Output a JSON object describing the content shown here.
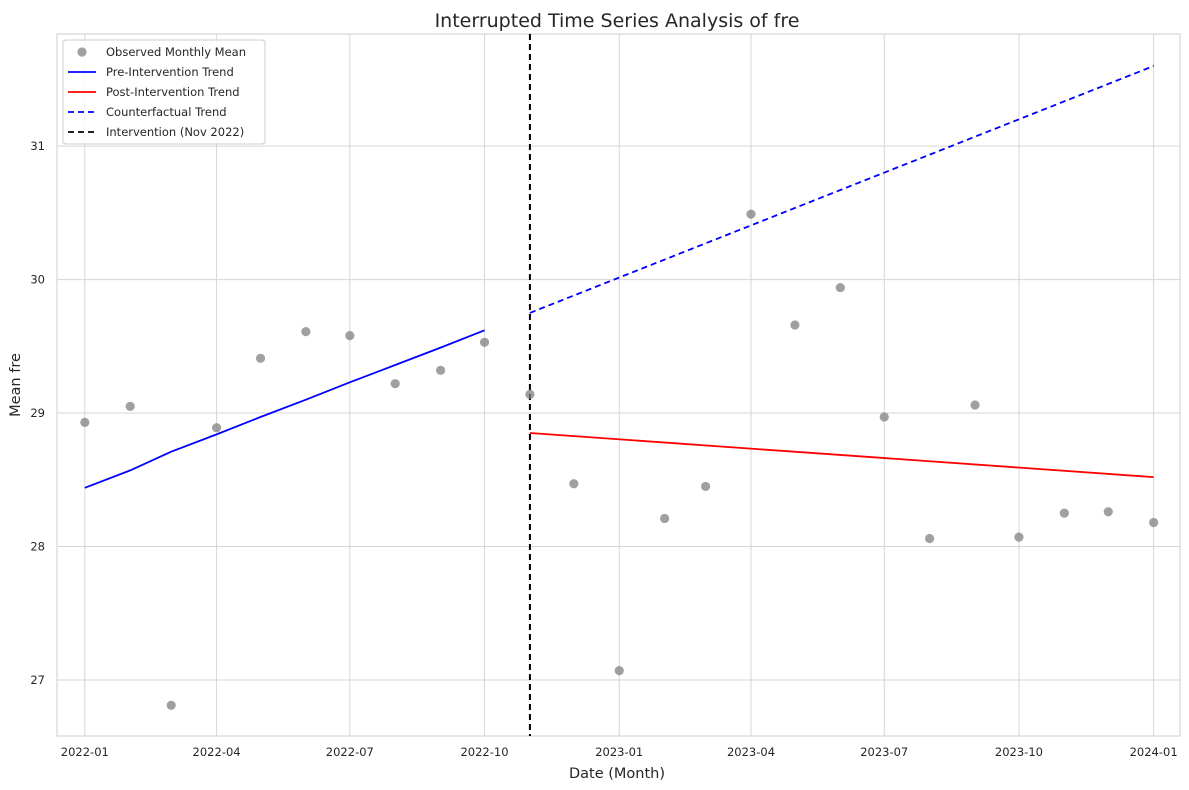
{
  "chart_data": {
    "type": "line",
    "title": "Interrupted Time Series Analysis of fre",
    "xlabel": "Date (Month)",
    "ylabel": "Mean fre",
    "x_range": [
      "2021-12-13",
      "2024-01-19"
    ],
    "ylim": [
      26.58,
      31.84
    ],
    "x_ticks": [
      {
        "date": "2022-01-01",
        "label": "2022-01"
      },
      {
        "date": "2022-04-01",
        "label": "2022-04"
      },
      {
        "date": "2022-07-01",
        "label": "2022-07"
      },
      {
        "date": "2022-10-01",
        "label": "2022-10"
      },
      {
        "date": "2023-01-01",
        "label": "2023-01"
      },
      {
        "date": "2023-04-01",
        "label": "2023-04"
      },
      {
        "date": "2023-07-01",
        "label": "2023-07"
      },
      {
        "date": "2023-10-01",
        "label": "2023-10"
      },
      {
        "date": "2024-01-01",
        "label": "2024-01"
      }
    ],
    "y_ticks": [
      27,
      28,
      29,
      30,
      31
    ],
    "grid": true,
    "legend_position": "top-left",
    "colors": {
      "observed": "#808080",
      "pre": "#0000ff",
      "post": "#ff0000",
      "counterfactual": "#0000ff",
      "intervention": "#000000"
    },
    "series": [
      {
        "name": "Observed Monthly Mean",
        "kind": "scatter",
        "points": [
          {
            "x": "2022-01-01",
            "y": 28.93
          },
          {
            "x": "2022-02-01",
            "y": 29.05
          },
          {
            "x": "2022-03-01",
            "y": 26.81
          },
          {
            "x": "2022-04-01",
            "y": 28.89
          },
          {
            "x": "2022-05-01",
            "y": 29.41
          },
          {
            "x": "2022-06-01",
            "y": 29.61
          },
          {
            "x": "2022-07-01",
            "y": 29.58
          },
          {
            "x": "2022-08-01",
            "y": 29.22
          },
          {
            "x": "2022-09-01",
            "y": 29.32
          },
          {
            "x": "2022-10-01",
            "y": 29.53
          },
          {
            "x": "2022-11-01",
            "y": 29.14
          },
          {
            "x": "2022-12-01",
            "y": 28.47
          },
          {
            "x": "2023-01-01",
            "y": 27.07
          },
          {
            "x": "2023-02-01",
            "y": 28.21
          },
          {
            "x": "2023-03-01",
            "y": 28.45
          },
          {
            "x": "2023-04-01",
            "y": 30.49
          },
          {
            "x": "2023-05-01",
            "y": 29.66
          },
          {
            "x": "2023-06-01",
            "y": 29.94
          },
          {
            "x": "2023-07-01",
            "y": 28.97
          },
          {
            "x": "2023-08-01",
            "y": 28.06
          },
          {
            "x": "2023-09-01",
            "y": 29.06
          },
          {
            "x": "2023-10-01",
            "y": 28.07
          },
          {
            "x": "2023-11-01",
            "y": 28.25
          },
          {
            "x": "2023-12-01",
            "y": 28.26
          },
          {
            "x": "2024-01-01",
            "y": 28.18
          }
        ]
      },
      {
        "name": "Pre-Intervention Trend",
        "kind": "line",
        "style": "solid",
        "points": [
          {
            "x": "2022-01-01",
            "y": 28.44
          },
          {
            "x": "2022-02-01",
            "y": 28.57
          },
          {
            "x": "2022-03-01",
            "y": 28.71
          },
          {
            "x": "2022-04-01",
            "y": 28.84
          },
          {
            "x": "2022-05-01",
            "y": 28.97
          },
          {
            "x": "2022-06-01",
            "y": 29.1
          },
          {
            "x": "2022-07-01",
            "y": 29.23
          },
          {
            "x": "2022-08-01",
            "y": 29.36
          },
          {
            "x": "2022-09-01",
            "y": 29.49
          },
          {
            "x": "2022-10-01",
            "y": 29.62
          }
        ]
      },
      {
        "name": "Post-Intervention Trend",
        "kind": "line",
        "style": "solid",
        "points": [
          {
            "x": "2022-11-01",
            "y": 28.85
          },
          {
            "x": "2024-01-01",
            "y": 28.52
          }
        ]
      },
      {
        "name": "Counterfactual Trend",
        "kind": "line",
        "style": "dashed",
        "points": [
          {
            "x": "2022-11-01",
            "y": 29.75
          },
          {
            "x": "2024-01-01",
            "y": 31.6
          }
        ]
      }
    ],
    "intervention": {
      "label": "Intervention (Nov 2022)",
      "x": "2022-11-01"
    }
  }
}
